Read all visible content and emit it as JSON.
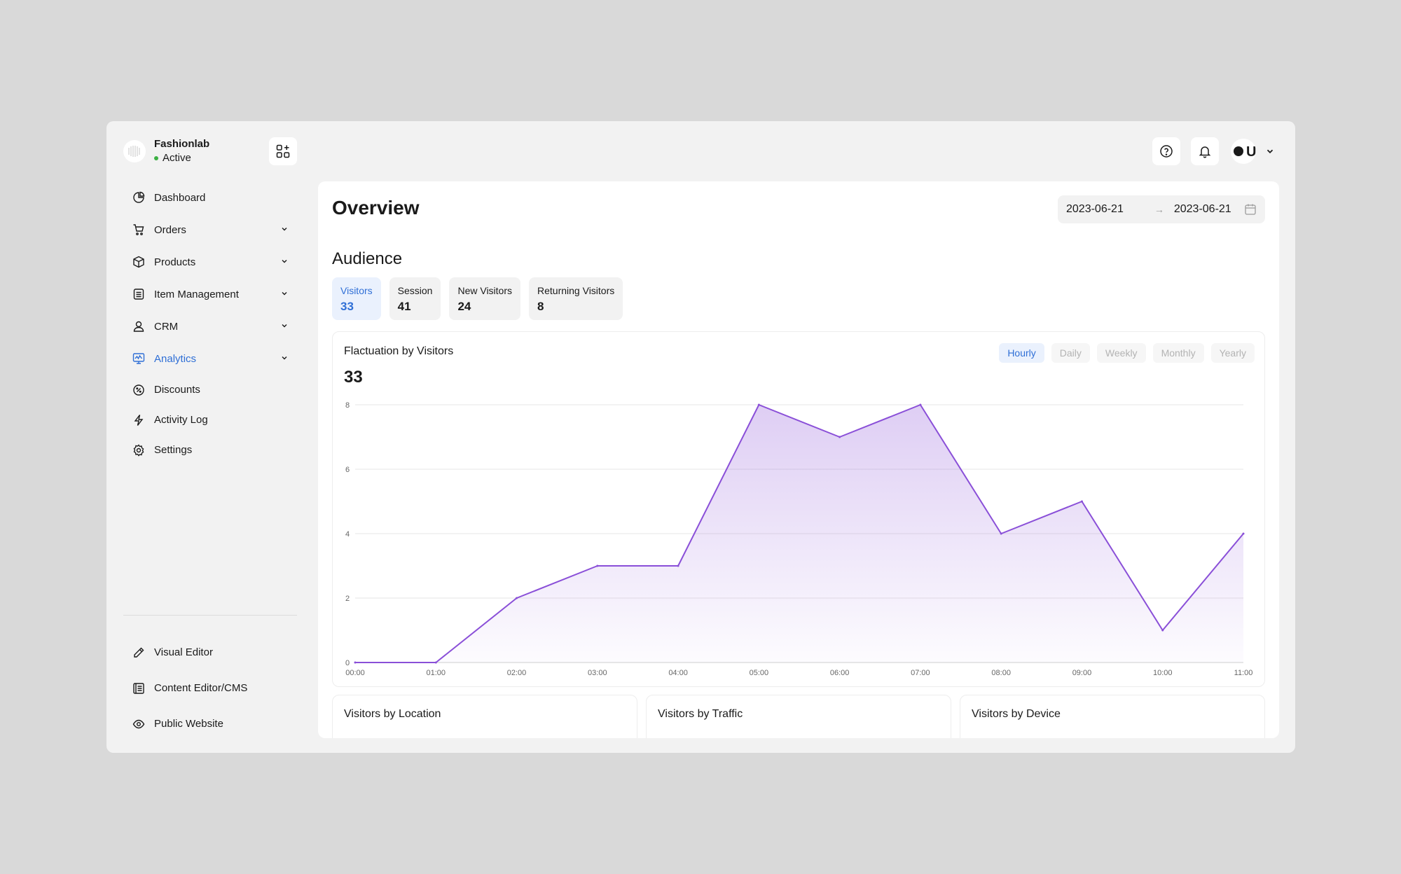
{
  "brand": {
    "name": "Fashionlab",
    "status": "Active"
  },
  "sidebar": {
    "items": [
      {
        "label": "Dashboard",
        "icon": "pie-chart-icon",
        "expandable": false
      },
      {
        "label": "Orders",
        "icon": "cart-icon",
        "expandable": true
      },
      {
        "label": "Products",
        "icon": "box-icon",
        "expandable": true
      },
      {
        "label": "Item Management",
        "icon": "list-icon",
        "expandable": true
      },
      {
        "label": "CRM",
        "icon": "user-icon",
        "expandable": true
      },
      {
        "label": "Analytics",
        "icon": "analytics-icon",
        "expandable": true,
        "active": true
      },
      {
        "label": "Discounts",
        "icon": "discount-icon",
        "expandable": false
      },
      {
        "label": "Activity Log",
        "icon": "bolt-icon",
        "expandable": false
      },
      {
        "label": "Settings",
        "icon": "gear-icon",
        "expandable": false
      }
    ],
    "bottom_items": [
      {
        "label": "Visual Editor",
        "icon": "pen-icon"
      },
      {
        "label": "Content Editor/CMS",
        "icon": "cms-icon"
      },
      {
        "label": "Public Website",
        "icon": "eye-icon"
      }
    ]
  },
  "header": {
    "user_initial": "U"
  },
  "main": {
    "title": "Overview",
    "date_from": "2023-06-21",
    "date_to": "2023-06-21",
    "audience_title": "Audience",
    "metrics": [
      {
        "label": "Visitors",
        "value": "33",
        "active": true
      },
      {
        "label": "Session",
        "value": "41"
      },
      {
        "label": "New Visitors",
        "value": "24"
      },
      {
        "label": "Returning Visitors",
        "value": "8"
      }
    ],
    "chart_card": {
      "title": "Flactuation by Visitors",
      "total": "33",
      "periods": [
        "Hourly",
        "Daily",
        "Weekly",
        "Monthly",
        "Yearly"
      ],
      "active_period": "Hourly"
    },
    "sub_cards": [
      "Visitors by Location",
      "Visitors by Traffic",
      "Visitors by Device"
    ]
  },
  "colors": {
    "accent": "#2f6fd6",
    "series": "#8a4fd8",
    "status": "#3cb043"
  },
  "chart_data": {
    "type": "area",
    "x": [
      "00:00",
      "01:00",
      "02:00",
      "03:00",
      "04:00",
      "05:00",
      "06:00",
      "07:00",
      "08:00",
      "09:00",
      "10:00",
      "11:00"
    ],
    "series": [
      {
        "values": [
          0,
          0,
          2,
          3,
          3,
          8,
          7,
          8,
          4,
          5,
          1,
          4
        ]
      }
    ],
    "yticks": [
      0,
      2,
      4,
      6,
      8
    ],
    "ylim": [
      0,
      8
    ],
    "grid": true
  }
}
